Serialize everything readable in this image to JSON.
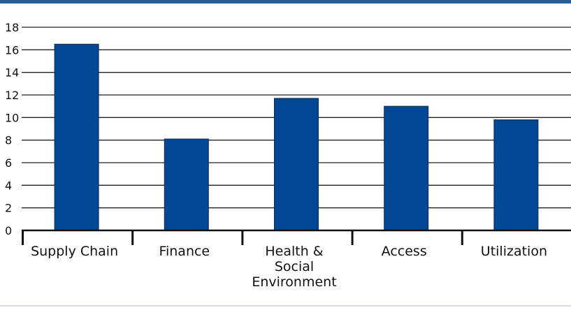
{
  "colors": {
    "bar": "#024793",
    "bar_edge": "#1a2a4a",
    "top_rule": "#2f5a92",
    "bottom_rule": "#d5dde8",
    "grid": "#222222"
  },
  "chart_data": {
    "type": "bar",
    "title": "",
    "xlabel": "",
    "ylabel": "",
    "categories": [
      {
        "label": "Supply Chain",
        "lines": [
          "Supply Chain"
        ]
      },
      {
        "label": "Finance",
        "lines": [
          "Finance"
        ]
      },
      {
        "label": "Health & Social Environment",
        "lines": [
          "Health &",
          "Social",
          "Environment"
        ]
      },
      {
        "label": "Access",
        "lines": [
          "Access"
        ]
      },
      {
        "label": "Utilization",
        "lines": [
          "Utilization"
        ]
      }
    ],
    "values": [
      16.5,
      8.1,
      11.7,
      11.0,
      9.8
    ],
    "yticks": [
      "0",
      "2",
      "4",
      "6",
      "8",
      "10",
      "12",
      "14",
      "16",
      "18"
    ],
    "ylim": [
      0,
      18
    ],
    "grid": true,
    "legend": "none"
  }
}
